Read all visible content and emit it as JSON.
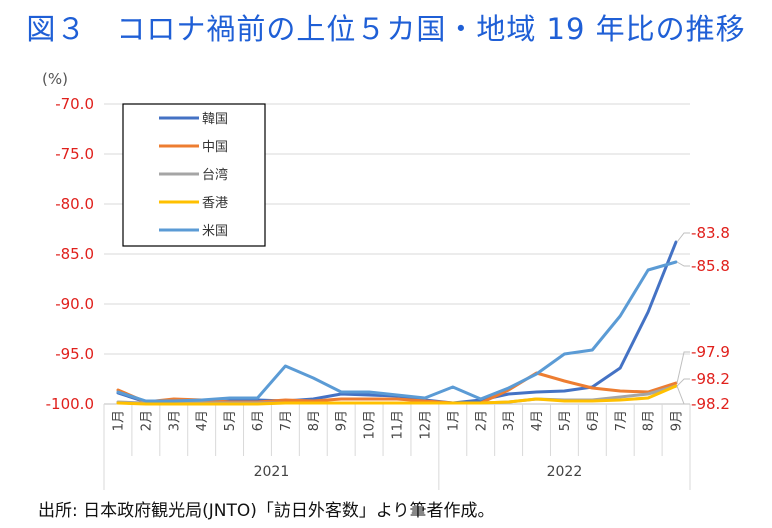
{
  "title": "図３　コロナ禍前の上位５カ国・地域 19 年比の推移",
  "source": "出所: 日本政府観光局(JNTO)「訪日外客数」より筆者作成。",
  "colors": {
    "korea": "#4472c4",
    "china": "#ed7d31",
    "taiwan": "#a5a5a5",
    "hongkong": "#ffc000",
    "usa": "#5b9bd5",
    "label": "#e0201c"
  },
  "chart_data": {
    "type": "line",
    "y_unit": "(%)",
    "ylim": [
      -100,
      -70
    ],
    "yticks": [
      "-70.0",
      "-75.0",
      "-80.0",
      "-85.0",
      "-90.0",
      "-95.0",
      "-100.0"
    ],
    "ytick_values": [
      -70,
      -75,
      -80,
      -85,
      -90,
      -95,
      -100
    ],
    "categories": [
      "1月",
      "2月",
      "3月",
      "4月",
      "5月",
      "6月",
      "7月",
      "8月",
      "9月",
      "10月",
      "11月",
      "12月",
      "1月",
      "2月",
      "3月",
      "4月",
      "5月",
      "6月",
      "7月",
      "8月",
      "9月"
    ],
    "years": [
      {
        "label": "2021",
        "start": 0,
        "end": 11
      },
      {
        "label": "2022",
        "start": 12,
        "end": 20
      }
    ],
    "legend_position": "top-left",
    "grid": "horizontal",
    "series": [
      {
        "name": "韓国",
        "color_key": "korea",
        "values": [
          -98.9,
          -99.8,
          -99.8,
          -99.8,
          -99.7,
          -99.6,
          -99.7,
          -99.5,
          -99.0,
          -99.1,
          -99.2,
          -99.6,
          -99.9,
          -99.6,
          -99.0,
          -98.8,
          -98.7,
          -98.3,
          -96.4,
          -90.8,
          -83.8
        ]
      },
      {
        "name": "中国",
        "color_key": "china",
        "values": [
          -98.6,
          -99.8,
          -99.5,
          -99.6,
          -99.8,
          -99.8,
          -99.6,
          -99.7,
          -99.5,
          -99.5,
          -99.5,
          -99.7,
          -99.9,
          -99.9,
          -98.6,
          -96.9,
          -97.7,
          -98.4,
          -98.7,
          -98.8,
          -97.9
        ]
      },
      {
        "name": "台湾",
        "color_key": "taiwan",
        "values": [
          -99.8,
          -99.9,
          -99.9,
          -99.9,
          -99.9,
          -99.9,
          -99.9,
          -99.9,
          -99.9,
          -99.9,
          -99.9,
          -99.9,
          -99.9,
          -99.9,
          -99.8,
          -99.5,
          -99.6,
          -99.6,
          -99.3,
          -99.0,
          -98.2
        ]
      },
      {
        "name": "香港",
        "color_key": "hongkong",
        "values": [
          -99.9,
          -100.0,
          -100.0,
          -100.0,
          -100.0,
          -100.0,
          -99.9,
          -99.9,
          -99.9,
          -99.9,
          -99.9,
          -99.9,
          -99.9,
          -99.9,
          -99.8,
          -99.5,
          -99.7,
          -99.7,
          -99.6,
          -99.4,
          -98.2
        ]
      },
      {
        "name": "米国",
        "color_key": "usa",
        "values": [
          -98.8,
          -99.7,
          -99.7,
          -99.6,
          -99.4,
          -99.4,
          -96.2,
          -97.4,
          -98.8,
          -98.8,
          -99.1,
          -99.4,
          -98.3,
          -99.5,
          -98.4,
          -97.0,
          -95.0,
          -94.6,
          -91.2,
          -86.6,
          -85.8
        ]
      }
    ],
    "end_labels": [
      "-83.8",
      "-85.8",
      "-97.9",
      "-98.2",
      "-98.2"
    ]
  }
}
